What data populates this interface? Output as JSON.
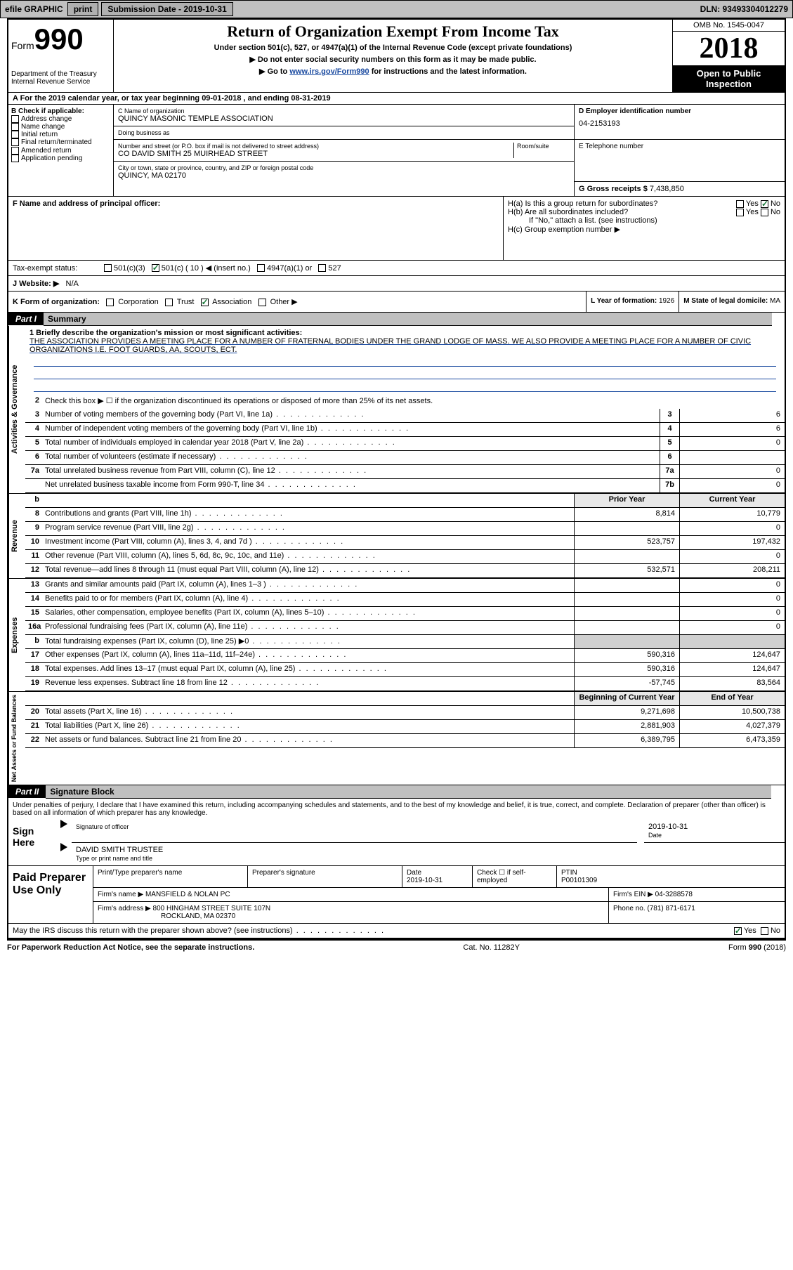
{
  "topbar": {
    "efile": "efile GRAPHIC",
    "print": "print",
    "subdate_label": "Submission Date - 2019-10-31",
    "dln": "DLN: 93493304012279"
  },
  "header": {
    "form_label": "Form",
    "form_num": "990",
    "dept1": "Department of the Treasury",
    "dept2": "Internal Revenue Service",
    "title": "Return of Organization Exempt From Income Tax",
    "sub1": "Under section 501(c), 527, or 4947(a)(1) of the Internal Revenue Code (except private foundations)",
    "sub2": "▶ Do not enter social security numbers on this form as it may be made public.",
    "sub3_pre": "▶ Go to ",
    "sub3_link": "www.irs.gov/Form990",
    "sub3_post": " for instructions and the latest information.",
    "omb": "OMB No. 1545-0047",
    "year": "2018",
    "insp1": "Open to Public",
    "insp2": "Inspection"
  },
  "row_a": "A For the 2019 calendar year, or tax year beginning 09-01-2018    , and ending 08-31-2019",
  "box_b": {
    "label": "B Check if applicable:",
    "opts": [
      "Address change",
      "Name change",
      "Initial return",
      "Final return/terminated",
      "Amended return",
      "Application pending"
    ]
  },
  "box_c": {
    "name_label": "C Name of organization",
    "name": "QUINCY MASONIC TEMPLE ASSOCIATION",
    "dba_label": "Doing business as",
    "addr_label": "Number and street (or P.O. box if mail is not delivered to street address)",
    "room_label": "Room/suite",
    "addr": "CO DAVID SMITH 25 MUIRHEAD STREET",
    "city_label": "City or town, state or province, country, and ZIP or foreign postal code",
    "city": "QUINCY, MA  02170"
  },
  "box_d": {
    "label": "D Employer identification number",
    "val": "04-2153193"
  },
  "box_e": {
    "label": "E Telephone number"
  },
  "box_g": {
    "label": "G Gross receipts $",
    "val": "7,438,850"
  },
  "box_f": {
    "label": "F  Name and address of principal officer:"
  },
  "box_h": {
    "ha": "H(a)  Is this a group return for subordinates?",
    "hb": "H(b)  Are all subordinates included?",
    "hb_note": "If \"No,\" attach a list. (see instructions)",
    "hc": "H(c)  Group exemption number ▶",
    "yes": "Yes",
    "no": "No"
  },
  "tax_status": {
    "label": "Tax-exempt status:",
    "o1": "501(c)(3)",
    "o2": "501(c) ( 10 ) ◀ (insert no.)",
    "o3": "4947(a)(1) or",
    "o4": "527"
  },
  "website": {
    "label": "J   Website: ▶",
    "val": "N/A"
  },
  "row_k": {
    "label": "K Form of organization:",
    "opts": [
      "Corporation",
      "Trust",
      "Association",
      "Other ▶"
    ],
    "l_label": "L Year of formation:",
    "l_val": "1926",
    "m_label": "M State of legal domicile:",
    "m_val": "MA"
  },
  "part1": {
    "hdr": "Part I",
    "title": "Summary"
  },
  "mission": {
    "label": "1   Briefly describe the organization's mission or most significant activities:",
    "text": "THE ASSOCIATION PROVIDES A MEETING PLACE FOR A NUMBER OF FRATERNAL BODIES UNDER THE GRAND LODGE OF MASS. WE ALSO PROVIDE A MEETING PLACE FOR A NUMBER OF CIVIC ORGANIZATIONS I.E. FOOT GUARDS, AA, SCOUTS, ECT."
  },
  "gov": {
    "vlabel": "Activities & Governance",
    "l2": "Check this box ▶ ☐  if the organization discontinued its operations or disposed of more than 25% of its net assets.",
    "lines": [
      {
        "n": "3",
        "t": "Number of voting members of the governing body (Part VI, line 1a)",
        "b": "3",
        "v": "6"
      },
      {
        "n": "4",
        "t": "Number of independent voting members of the governing body (Part VI, line 1b)",
        "b": "4",
        "v": "6"
      },
      {
        "n": "5",
        "t": "Total number of individuals employed in calendar year 2018 (Part V, line 2a)",
        "b": "5",
        "v": "0"
      },
      {
        "n": "6",
        "t": "Total number of volunteers (estimate if necessary)",
        "b": "6",
        "v": ""
      },
      {
        "n": "7a",
        "t": "Total unrelated business revenue from Part VIII, column (C), line 12",
        "b": "7a",
        "v": "0"
      },
      {
        "n": "",
        "t": "Net unrelated business taxable income from Form 990-T, line 34",
        "b": "7b",
        "v": "0"
      }
    ]
  },
  "cols": {
    "py": "Prior Year",
    "cy": "Current Year",
    "boy": "Beginning of Current Year",
    "eoy": "End of Year"
  },
  "rev": {
    "vlabel": "Revenue",
    "lines": [
      {
        "n": "8",
        "t": "Contributions and grants (Part VIII, line 1h)",
        "py": "8,814",
        "cy": "10,779"
      },
      {
        "n": "9",
        "t": "Program service revenue (Part VIII, line 2g)",
        "py": "",
        "cy": "0"
      },
      {
        "n": "10",
        "t": "Investment income (Part VIII, column (A), lines 3, 4, and 7d )",
        "py": "523,757",
        "cy": "197,432"
      },
      {
        "n": "11",
        "t": "Other revenue (Part VIII, column (A), lines 5, 6d, 8c, 9c, 10c, and 11e)",
        "py": "",
        "cy": "0"
      },
      {
        "n": "12",
        "t": "Total revenue—add lines 8 through 11 (must equal Part VIII, column (A), line 12)",
        "py": "532,571",
        "cy": "208,211"
      }
    ]
  },
  "exp": {
    "vlabel": "Expenses",
    "lines": [
      {
        "n": "13",
        "t": "Grants and similar amounts paid (Part IX, column (A), lines 1–3 )",
        "py": "",
        "cy": "0"
      },
      {
        "n": "14",
        "t": "Benefits paid to or for members (Part IX, column (A), line 4)",
        "py": "",
        "cy": "0"
      },
      {
        "n": "15",
        "t": "Salaries, other compensation, employee benefits (Part IX, column (A), lines 5–10)",
        "py": "",
        "cy": "0"
      },
      {
        "n": "16a",
        "t": "Professional fundraising fees (Part IX, column (A), line 11e)",
        "py": "",
        "cy": "0"
      },
      {
        "n": "b",
        "t": "Total fundraising expenses (Part IX, column (D), line 25) ▶0",
        "py": "shade",
        "cy": "shade"
      },
      {
        "n": "17",
        "t": "Other expenses (Part IX, column (A), lines 11a–11d, 11f–24e)",
        "py": "590,316",
        "cy": "124,647"
      },
      {
        "n": "18",
        "t": "Total expenses. Add lines 13–17 (must equal Part IX, column (A), line 25)",
        "py": "590,316",
        "cy": "124,647"
      },
      {
        "n": "19",
        "t": "Revenue less expenses. Subtract line 18 from line 12",
        "py": "-57,745",
        "cy": "83,564"
      }
    ]
  },
  "net": {
    "vlabel": "Net Assets or Fund Balances",
    "lines": [
      {
        "n": "20",
        "t": "Total assets (Part X, line 16)",
        "py": "9,271,698",
        "cy": "10,500,738"
      },
      {
        "n": "21",
        "t": "Total liabilities (Part X, line 26)",
        "py": "2,881,903",
        "cy": "4,027,379"
      },
      {
        "n": "22",
        "t": "Net assets or fund balances. Subtract line 21 from line 20",
        "py": "6,389,795",
        "cy": "6,473,359"
      }
    ]
  },
  "part2": {
    "hdr": "Part II",
    "title": "Signature Block"
  },
  "sig": {
    "penalty": "Under penalties of perjury, I declare that I have examined this return, including accompanying schedules and statements, and to the best of my knowledge and belief, it is true, correct, and complete. Declaration of preparer (other than officer) is based on all information of which preparer has any knowledge.",
    "sign_here": "Sign Here",
    "sig_officer": "Signature of officer",
    "date_label": "Date",
    "date": "2019-10-31",
    "name": "DAVID SMITH  TRUSTEE",
    "name_label": "Type or print name and title"
  },
  "prep": {
    "label": "Paid Preparer Use Only",
    "h1": "Print/Type preparer's name",
    "h2": "Preparer's signature",
    "h3": "Date",
    "h3v": "2019-10-31",
    "h4": "Check ☐  if self-employed",
    "h5": "PTIN",
    "h5v": "P00101309",
    "firm_label": "Firm's name    ▶",
    "firm": "MANSFIELD & NOLAN PC",
    "ein_label": "Firm's EIN ▶",
    "ein": "04-3288578",
    "addr_label": "Firm's address ▶",
    "addr1": "800 HINGHAM STREET SUITE 107N",
    "addr2": "ROCKLAND, MA  02370",
    "phone_label": "Phone no.",
    "phone": "(781) 871-6171"
  },
  "discuss": {
    "text": "May the IRS discuss this return with the preparer shown above? (see instructions)",
    "yes": "Yes",
    "no": "No"
  },
  "footer": {
    "left": "For Paperwork Reduction Act Notice, see the separate instructions.",
    "mid": "Cat. No. 11282Y",
    "right": "Form 990 (2018)"
  }
}
